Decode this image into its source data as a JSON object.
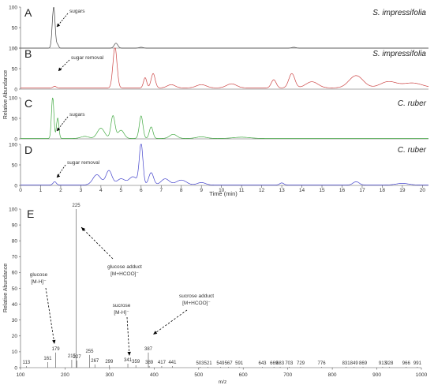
{
  "chart_data": [
    {
      "type": "line",
      "panels": [
        {
          "label": "A",
          "species": "S. impressifolia",
          "color": "#444444",
          "annotation": "sugars",
          "peaks": [
            [
              1.65,
              100,
              0.07
            ],
            [
              1.85,
              8,
              0.05
            ],
            [
              4.75,
              12,
              0.09
            ],
            [
              6.0,
              2,
              0.1
            ],
            [
              13.6,
              2,
              0.1
            ]
          ],
          "baseline": 0
        },
        {
          "label": "B",
          "species": "S. impressifolia",
          "color": "#cc4444",
          "annotation": "sugar removal",
          "peaks": [
            [
              1.7,
              4,
              0.08
            ],
            [
              4.7,
              100,
              0.1
            ],
            [
              6.2,
              25,
              0.08
            ],
            [
              6.6,
              35,
              0.1
            ],
            [
              7.5,
              8,
              0.2
            ],
            [
              9.0,
              8,
              0.25
            ],
            [
              10.5,
              10,
              0.25
            ],
            [
              12.6,
              20,
              0.12
            ],
            [
              13.5,
              35,
              0.15
            ],
            [
              14.5,
              15,
              0.3
            ],
            [
              16.7,
              30,
              0.35
            ],
            [
              18.3,
              15,
              0.4
            ],
            [
              19.5,
              12,
              0.5
            ]
          ],
          "baseline": 3
        },
        {
          "label": "C",
          "species": "C. ruber",
          "color": "#44aa44",
          "annotation": "sugars",
          "peaks": [
            [
              1.6,
              100,
              0.06
            ],
            [
              1.85,
              50,
              0.06
            ],
            [
              3.2,
              5,
              0.2
            ],
            [
              4.0,
              25,
              0.18
            ],
            [
              4.6,
              55,
              0.1
            ],
            [
              5.0,
              20,
              0.15
            ],
            [
              6.0,
              55,
              0.09
            ],
            [
              6.5,
              28,
              0.09
            ],
            [
              7.6,
              10,
              0.18
            ],
            [
              9.0,
              4,
              0.25
            ],
            [
              11.0,
              3,
              0.4
            ]
          ],
          "baseline": 1
        },
        {
          "label": "D",
          "species": "C. ruber",
          "color": "#4444cc",
          "annotation": "sugar removal",
          "peaks": [
            [
              1.7,
              8,
              0.08
            ],
            [
              3.8,
              25,
              0.2
            ],
            [
              4.4,
              35,
              0.15
            ],
            [
              5.0,
              15,
              0.2
            ],
            [
              5.6,
              20,
              0.2
            ],
            [
              6.0,
              100,
              0.09
            ],
            [
              6.5,
              30,
              0.12
            ],
            [
              7.2,
              15,
              0.2
            ],
            [
              8.0,
              12,
              0.25
            ],
            [
              9.0,
              6,
              0.2
            ],
            [
              13.0,
              5,
              0.1
            ],
            [
              16.7,
              8,
              0.15
            ],
            [
              19.0,
              4,
              0.3
            ]
          ],
          "baseline": 1
        }
      ],
      "xlabel": "Time (min)",
      "ylabel": "Relative Abundance",
      "xlim": [
        0,
        20.3
      ],
      "xticks": [
        "0",
        "1",
        "2",
        "3",
        "4",
        "5",
        "6",
        "7",
        "8",
        "9",
        "10",
        "11",
        "12",
        "13",
        "14",
        "15",
        "16",
        "17",
        "18",
        "19",
        "20"
      ],
      "yticks": [
        0,
        50,
        100
      ]
    },
    {
      "type": "bar",
      "panel_label": "E",
      "xlabel": "m/z",
      "ylabel": "Relative Abundance",
      "xlim": [
        100,
        1000
      ],
      "ylim": [
        0,
        100
      ],
      "xticks": [
        100,
        200,
        300,
        400,
        500,
        600,
        700,
        800,
        900,
        1000
      ],
      "yticks": [
        0,
        10,
        20,
        30,
        40,
        50,
        60,
        70,
        80,
        90,
        100
      ],
      "peaks": [
        {
          "mz": 113,
          "intensity": 1,
          "label": "113"
        },
        {
          "mz": 161,
          "intensity": 3.5,
          "label": "161"
        },
        {
          "mz": 179,
          "intensity": 9.5,
          "label": "179"
        },
        {
          "mz": 215,
          "intensity": 5,
          "label": "215"
        },
        {
          "mz": 225,
          "intensity": 100,
          "label": "225"
        },
        {
          "mz": 227,
          "intensity": 4.5,
          "label": "227"
        },
        {
          "mz": 255,
          "intensity": 8,
          "label": "255"
        },
        {
          "mz": 267,
          "intensity": 2,
          "label": "267"
        },
        {
          "mz": 299,
          "intensity": 1.5,
          "label": "299"
        },
        {
          "mz": 341,
          "intensity": 2.5,
          "label": "341"
        },
        {
          "mz": 359,
          "intensity": 1.5,
          "label": "359"
        },
        {
          "mz": 387,
          "intensity": 9.5,
          "label": "387"
        },
        {
          "mz": 389,
          "intensity": 1,
          "label": "389"
        },
        {
          "mz": 417,
          "intensity": 1,
          "label": "417"
        },
        {
          "mz": 441,
          "intensity": 1,
          "label": "441"
        },
        {
          "mz": 503,
          "intensity": 0.5,
          "label": "503"
        },
        {
          "mz": 521,
          "intensity": 0.5,
          "label": "521"
        },
        {
          "mz": 549,
          "intensity": 0.5,
          "label": "549"
        },
        {
          "mz": 567,
          "intensity": 0.5,
          "label": "567"
        },
        {
          "mz": 591,
          "intensity": 0.5,
          "label": "591"
        },
        {
          "mz": 643,
          "intensity": 0.5,
          "label": "643"
        },
        {
          "mz": 669,
          "intensity": 0.5,
          "label": "669"
        },
        {
          "mz": 683,
          "intensity": 0.5,
          "label": "683"
        },
        {
          "mz": 703,
          "intensity": 0.5,
          "label": "703"
        },
        {
          "mz": 729,
          "intensity": 0.5,
          "label": "729"
        },
        {
          "mz": 776,
          "intensity": 0.5,
          "label": "776"
        },
        {
          "mz": 831,
          "intensity": 0.5,
          "label": "831"
        },
        {
          "mz": 849,
          "intensity": 0.5,
          "label": "849"
        },
        {
          "mz": 869,
          "intensity": 0.5,
          "label": "869"
        },
        {
          "mz": 913,
          "intensity": 0.5,
          "label": "913"
        },
        {
          "mz": 928,
          "intensity": 0.5,
          "label": "928"
        },
        {
          "mz": 966,
          "intensity": 0.5,
          "label": "966"
        },
        {
          "mz": 991,
          "intensity": 0.5,
          "label": "991"
        }
      ],
      "annotations": [
        {
          "lines": [
            "glucose",
            "[M-H]⁻"
          ]
        },
        {
          "lines": [
            "glucose adduct",
            "[M+HCOO]⁻"
          ]
        },
        {
          "lines": [
            "sucrose",
            "[M-H]⁻"
          ]
        },
        {
          "lines": [
            "sucrose adduct",
            "[M+HCOO]⁻"
          ]
        }
      ]
    }
  ]
}
